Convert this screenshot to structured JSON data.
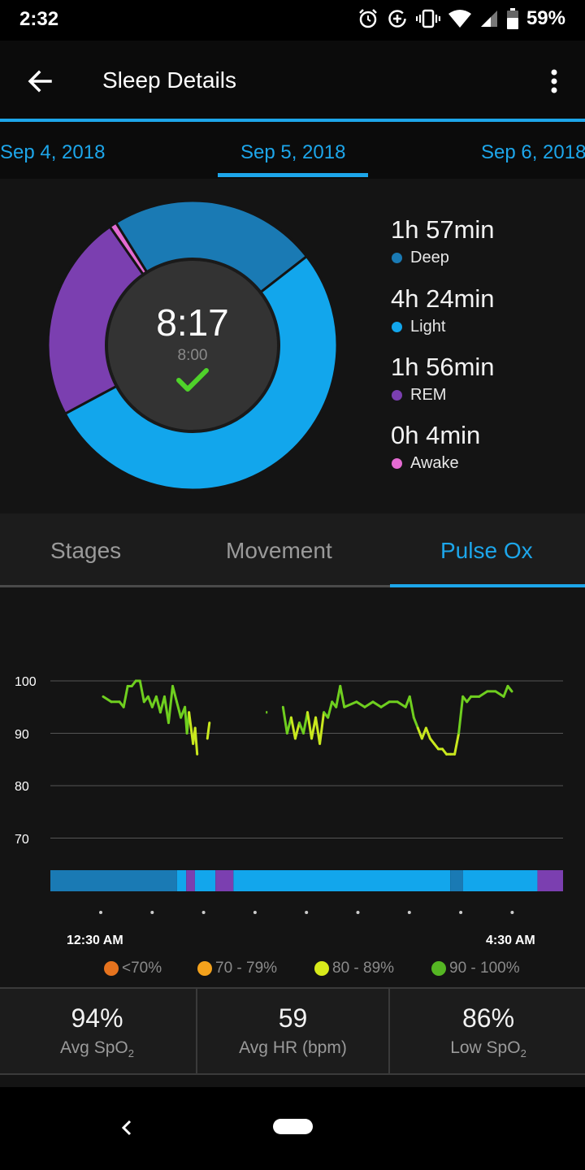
{
  "status_bar": {
    "time": "2:32",
    "battery": "59%",
    "icons": [
      "alarm-icon",
      "data-saver-icon",
      "vibrate-icon",
      "wifi-icon",
      "cellular-icon",
      "battery-icon"
    ]
  },
  "app_bar": {
    "title": "Sleep Details",
    "back_icon": "arrow-back-icon",
    "menu_icon": "more-vert-icon"
  },
  "date_nav": {
    "prev": "Sep 4, 2018",
    "current": "Sep 5, 2018",
    "next": "Sep 6, 2018"
  },
  "summary": {
    "total": "8:17",
    "goal": "8:00",
    "status_icon": "check-icon",
    "stages": [
      {
        "duration": "1h 57min",
        "label": "Deep",
        "color": "#1a7ab4",
        "minutes": 117
      },
      {
        "duration": "4h 24min",
        "label": "Light",
        "color": "#12a6ec",
        "minutes": 264
      },
      {
        "duration": "1h 56min",
        "label": "REM",
        "color": "#7b3fb0",
        "minutes": 116
      },
      {
        "duration": "0h 4min",
        "label": "Awake",
        "color": "#e46bd2",
        "minutes": 4
      }
    ]
  },
  "detail_tabs": {
    "items": [
      "Stages",
      "Movement",
      "Pulse Ox"
    ],
    "active": "Pulse Ox"
  },
  "chart_data": {
    "type": "line",
    "y_ticks": [
      "100",
      "90",
      "80",
      "70"
    ],
    "ylim": [
      65,
      100
    ],
    "x_start_label": "12:30 AM",
    "x_end_label": "4:30 AM",
    "series": [
      {
        "values": [
          [
            0.0,
            97
          ],
          [
            0.02,
            96
          ],
          [
            0.04,
            96
          ],
          [
            0.05,
            95
          ],
          [
            0.06,
            99
          ],
          [
            0.07,
            99
          ],
          [
            0.08,
            100
          ],
          [
            0.09,
            100
          ],
          [
            0.1,
            96
          ],
          [
            0.11,
            97
          ],
          [
            0.12,
            95
          ],
          [
            0.13,
            97
          ],
          [
            0.14,
            94
          ],
          [
            0.15,
            97
          ],
          [
            0.16,
            92
          ],
          [
            0.17,
            99
          ],
          [
            0.18,
            96
          ],
          [
            0.19,
            93
          ],
          [
            0.2,
            95
          ],
          [
            0.205,
            90
          ],
          [
            0.21,
            94
          ],
          [
            0.22,
            88
          ],
          [
            0.225,
            91
          ],
          [
            0.23,
            86
          ],
          null,
          [
            0.255,
            89
          ],
          [
            0.26,
            92
          ],
          null,
          [
            0.4,
            94
          ],
          null,
          [
            0.44,
            95
          ],
          [
            0.45,
            90
          ],
          [
            0.46,
            93
          ],
          [
            0.47,
            89
          ],
          [
            0.48,
            92
          ],
          [
            0.49,
            90
          ],
          [
            0.5,
            94
          ],
          [
            0.51,
            89
          ],
          [
            0.52,
            93
          ],
          [
            0.53,
            88
          ],
          [
            0.54,
            94
          ],
          [
            0.55,
            93
          ],
          [
            0.56,
            96
          ],
          [
            0.57,
            95
          ],
          [
            0.58,
            99
          ],
          [
            0.59,
            95
          ],
          [
            0.62,
            96
          ],
          [
            0.64,
            95
          ],
          [
            0.66,
            96
          ],
          [
            0.68,
            95
          ],
          [
            0.7,
            96
          ],
          [
            0.72,
            96
          ],
          [
            0.74,
            95
          ],
          [
            0.75,
            97
          ],
          [
            0.76,
            93
          ],
          [
            0.77,
            91
          ],
          [
            0.78,
            89
          ],
          [
            0.79,
            91
          ],
          [
            0.8,
            89
          ],
          [
            0.81,
            88
          ],
          [
            0.82,
            87
          ],
          [
            0.83,
            87
          ],
          [
            0.84,
            86
          ],
          [
            0.85,
            86
          ],
          [
            0.86,
            86
          ],
          [
            0.87,
            90
          ],
          [
            0.88,
            97
          ],
          [
            0.89,
            96
          ],
          [
            0.9,
            97
          ],
          [
            0.92,
            97
          ],
          [
            0.94,
            98
          ],
          [
            0.96,
            98
          ],
          [
            0.98,
            97
          ],
          [
            0.99,
            99
          ],
          [
            1.0,
            98
          ]
        ],
        "x_is_fraction_of_night": true
      }
    ],
    "hypnogram": [
      {
        "stage": "Deep",
        "start": 0.0,
        "end": 0.247
      },
      {
        "stage": "Light",
        "start": 0.247,
        "end": 0.265
      },
      {
        "stage": "REM",
        "start": 0.265,
        "end": 0.282
      },
      {
        "stage": "Light",
        "start": 0.282,
        "end": 0.322
      },
      {
        "stage": "REM",
        "start": 0.322,
        "end": 0.357
      },
      {
        "stage": "Light",
        "start": 0.357,
        "end": 0.78
      },
      {
        "stage": "Deep",
        "start": 0.78,
        "end": 0.805
      },
      {
        "stage": "Light",
        "start": 0.805,
        "end": 0.95
      },
      {
        "stage": "REM",
        "start": 0.95,
        "end": 1.0
      }
    ],
    "tick_dots_count": 9,
    "line_colors": {
      "green": "#6fcf1f",
      "yellow": "#c9e81e"
    },
    "grid": true
  },
  "spo2_legend": [
    {
      "label": "<70%",
      "color": "#e6731e"
    },
    {
      "label": "70 - 79%",
      "color": "#f4a21c"
    },
    {
      "label": "80 - 89%",
      "color": "#d7ea1b"
    },
    {
      "label": "90 - 100%",
      "color": "#55b623"
    }
  ],
  "stats": [
    {
      "value": "94%",
      "label": "Avg SpO",
      "sub": "2"
    },
    {
      "value": "59",
      "label": "Avg HR (bpm)",
      "sub": ""
    },
    {
      "value": "86%",
      "label": "Low SpO",
      "sub": "2"
    }
  ],
  "nav_bar": {
    "back_icon": "nav-back-icon",
    "home_icon": "nav-home-icon"
  }
}
